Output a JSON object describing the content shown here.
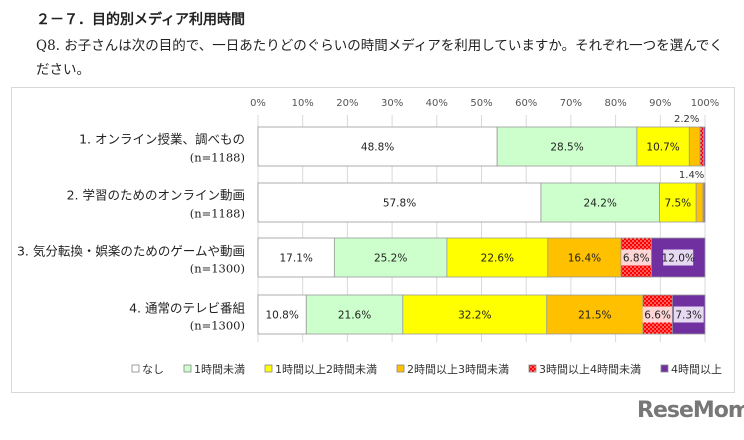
{
  "header": {
    "title": "２－７．目的別メディア利用時間",
    "question": "Q8. お子さんは次の目的で、一日あたりどのぐらいの時間メディアを利用していますか。それぞれ一つを選んでください。"
  },
  "logo": "ReseMom",
  "chart_data": {
    "type": "bar",
    "orientation": "horizontal",
    "stacked": "100%",
    "xlim": [
      0,
      100
    ],
    "grid": true,
    "legend_position": "bottom",
    "ticks": [
      "0%",
      "10%",
      "20%",
      "30%",
      "40%",
      "50%",
      "60%",
      "70%",
      "80%",
      "90%",
      "100%"
    ],
    "categories": [
      {
        "label": "1. オンライン授業、調べもの",
        "n": "(n=1188)"
      },
      {
        "label": "2. 学習のためのオンライン動画",
        "n": "(n=1188)"
      },
      {
        "label": "3. 気分転換・娯楽のためのゲームや動画",
        "n": "(n=1300)"
      },
      {
        "label": "4. 通常のテレビ番組",
        "n": "(n=1300)"
      }
    ],
    "series": [
      {
        "name": "なし",
        "color": "#ffffff",
        "values": [
          48.8,
          57.8,
          17.1,
          10.8
        ],
        "labels": [
          "48.8%",
          "57.8%",
          "17.1%",
          "10.8%"
        ]
      },
      {
        "name": "1時間未満",
        "color": "#ccffcc",
        "values": [
          28.5,
          24.2,
          25.2,
          21.6
        ],
        "labels": [
          "28.5%",
          "24.2%",
          "25.2%",
          "21.6%"
        ]
      },
      {
        "name": "1時間以上2時間未満",
        "color": "#ffff00",
        "values": [
          10.7,
          7.5,
          22.6,
          32.2
        ],
        "labels": [
          "10.7%",
          "7.5%",
          "22.6%",
          "32.2%"
        ]
      },
      {
        "name": "2時間以上3時間未満",
        "color": "#ffc000",
        "values": [
          2.2,
          1.4,
          16.4,
          21.5
        ],
        "labels": [
          "2.2%",
          "1.4%",
          "16.4%",
          "21.5%"
        ],
        "label_above": [
          true,
          true,
          false,
          false
        ]
      },
      {
        "name": "3時間以上4時間未満",
        "color": "#ff0000",
        "pattern": "dotted",
        "values": [
          0.7,
          0.2,
          6.8,
          6.6
        ],
        "labels": [
          "",
          "",
          "6.8%",
          "6.6%"
        ]
      },
      {
        "name": "4時間以上",
        "color": "#7030a0",
        "values": [
          0.3,
          0.2,
          12.0,
          7.3
        ],
        "labels": [
          "",
          "",
          "12.0%",
          "7.3%"
        ]
      }
    ]
  }
}
